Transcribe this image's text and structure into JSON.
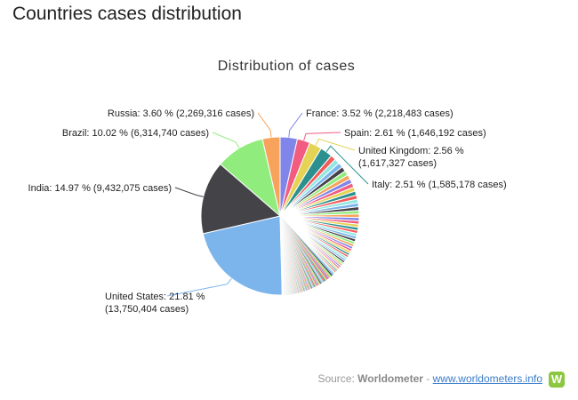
{
  "page": {
    "title": "Countries cases distribution"
  },
  "source": {
    "prefix": "Source: ",
    "brand": "Worldometer",
    "separator": " - ",
    "link_text": "www.worldometers.info",
    "logo_letter": "W",
    "logo_color": "#8dc63f"
  },
  "chart_data": {
    "type": "pie",
    "title": "Distribution of cases",
    "slices": [
      {
        "name": "United States",
        "percent": 21.81,
        "cases": "13,750,404",
        "color": "#7cb5ec",
        "label": [
          "United States: 21.81 %",
          "(13,750,404 cases)"
        ]
      },
      {
        "name": "India",
        "percent": 14.97,
        "cases": "9,432,075",
        "color": "#434348",
        "label": [
          "India: 14.97 % (9,432,075 cases)"
        ]
      },
      {
        "name": "Brazil",
        "percent": 10.02,
        "cases": "6,314,740",
        "color": "#90ed7d",
        "label": [
          "Brazil: 10.02 % (6,314,740 cases)"
        ]
      },
      {
        "name": "Russia",
        "percent": 3.6,
        "cases": "2,269,316",
        "color": "#f7a35c",
        "label": [
          "Russia: 3.60 % (2,269,316 cases)"
        ]
      },
      {
        "name": "France",
        "percent": 3.52,
        "cases": "2,218,483",
        "color": "#8085e9",
        "label": [
          "France: 3.52 % (2,218,483 cases)"
        ]
      },
      {
        "name": "Spain",
        "percent": 2.61,
        "cases": "1,646,192",
        "color": "#f15c80",
        "label": [
          "Spain: 2.61 % (1,646,192 cases)"
        ]
      },
      {
        "name": "United Kingdom",
        "percent": 2.56,
        "cases": "1,617,327",
        "color": "#e4d354",
        "label": [
          "United Kingdom: 2.56 %",
          "(1,617,327 cases)"
        ]
      },
      {
        "name": "Italy",
        "percent": 2.51,
        "cases": "1,585,178",
        "color": "#2b908f",
        "label": [
          "Italy: 2.51 % (1,585,178 cases)"
        ]
      }
    ],
    "other_slices_count": 180,
    "other_slice_colors": [
      "#f45b5b",
      "#91e8e1",
      "#7cb5ec",
      "#434348",
      "#90ed7d",
      "#f7a35c",
      "#8085e9",
      "#f15c80",
      "#e4d354",
      "#2b908f"
    ]
  }
}
